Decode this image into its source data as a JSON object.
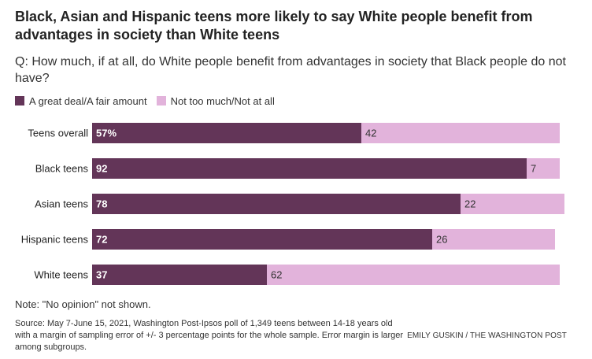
{
  "header": {
    "title": "Black, Asian and Hispanic teens more likely to say White people benefit from advantages in society than White teens",
    "question": "Q: How much, if at all, do White people benefit from advantages in society that Black people do not have?"
  },
  "legend": [
    {
      "label": "A great deal/A fair amount",
      "color": "#633558"
    },
    {
      "label": "Not too much/Not at all",
      "color": "#e2b3db"
    }
  ],
  "chart_data": {
    "type": "bar",
    "orientation": "horizontal",
    "stacked": true,
    "categories": [
      "Teens overall",
      "Black teens",
      "Asian teens",
      "Hispanic teens",
      "White teens"
    ],
    "series": [
      {
        "name": "A great deal/A fair amount",
        "values": [
          57,
          92,
          78,
          72,
          37
        ],
        "labels": [
          "57%",
          "92",
          "78",
          "72",
          "37"
        ],
        "color": "#633558"
      },
      {
        "name": "Not too much/Not at all",
        "values": [
          42,
          7,
          22,
          26,
          62
        ],
        "labels": [
          "42",
          "7",
          "22",
          "26",
          "62"
        ],
        "color": "#e2b3db"
      }
    ],
    "xlim": [
      0,
      100
    ]
  },
  "footer": {
    "note": "Note: \"No opinion\" not shown.",
    "source": "Source: May 7-June 15, 2021, Washington Post-Ipsos poll of 1,349 teens between 14-18 years old with a margin of sampling error of +/- 3 percentage points for the whole sample. Error margin is larger among subgroups.",
    "credit": "EMILY GUSKIN / THE WASHINGTON POST"
  }
}
